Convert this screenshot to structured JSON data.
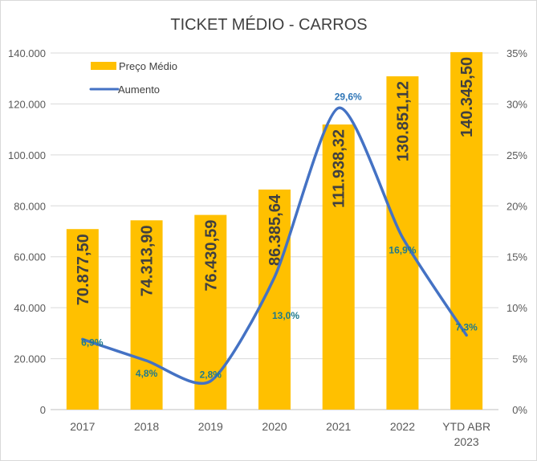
{
  "chart_data": {
    "type": "bar+line",
    "title": "TICKET MÉDIO - CARROS",
    "categories": [
      "2017",
      "2018",
      "2019",
      "2020",
      "2021",
      "2022",
      "YTD ABR|2023"
    ],
    "series": [
      {
        "name": "Preço Médio",
        "type": "bar",
        "axis": "left",
        "color": "#FFC000",
        "values": [
          70877.5,
          74313.9,
          76430.59,
          86385.64,
          111938.32,
          130851.12,
          140345.5
        ],
        "labels": [
          "70.877,50",
          "74.313,90",
          "76.430,59",
          "86.385,64",
          "111.938,32",
          "130.851,12",
          "140.345,50"
        ]
      },
      {
        "name": "Aumento",
        "type": "line",
        "axis": "right",
        "color": "#4472C4",
        "smooth": true,
        "values": [
          6.9,
          4.8,
          2.8,
          13.0,
          29.6,
          16.9,
          7.3
        ],
        "labels": [
          "6,9%",
          "4,8%",
          "2,8%",
          "13,0%",
          "29,6%",
          "16,9%",
          "7,3%"
        ]
      }
    ],
    "left_axis": {
      "ylim": [
        0,
        140000
      ],
      "ticks": [
        "0",
        "20.000",
        "40.000",
        "60.000",
        "80.000",
        "100.000",
        "120.000",
        "140.000"
      ]
    },
    "right_axis": {
      "ylim": [
        0,
        35
      ],
      "ticks": [
        "0%",
        "5%",
        "10%",
        "15%",
        "20%",
        "25%",
        "30%",
        "35%"
      ]
    },
    "grid": true,
    "legend": "top-left"
  }
}
